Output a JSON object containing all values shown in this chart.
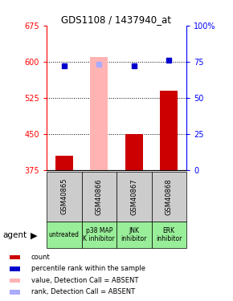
{
  "title": "GDS1108 / 1437940_at",
  "samples": [
    "GSM40865",
    "GSM40866",
    "GSM40867",
    "GSM40868"
  ],
  "agents": [
    "untreated",
    "p38 MAP\nK inhibitor",
    "JNK\ninhibitor",
    "ERK\ninhibitor"
  ],
  "ylim_left": [
    375,
    675
  ],
  "ylim_right": [
    0,
    100
  ],
  "yticks_left": [
    375,
    450,
    525,
    600,
    675
  ],
  "yticks_right": [
    0,
    25,
    50,
    75,
    100
  ],
  "bar_values": [
    405,
    610,
    450,
    540
  ],
  "bar_absent": [
    false,
    true,
    false,
    false
  ],
  "bar_color_present": "#cc0000",
  "bar_color_absent": "#ffb3b3",
  "blue_sq_values": [
    72,
    73,
    72,
    76
  ],
  "blue_sq_absent": [
    false,
    true,
    false,
    false
  ],
  "blue_sq_color_present": "#0000cc",
  "blue_sq_color_absent": "#aaaaff",
  "sample_bg_color": "#cccccc",
  "agent_bg_color": "#99ee99",
  "legend_items": [
    {
      "color": "#cc0000",
      "label": "count"
    },
    {
      "color": "#0000cc",
      "label": "percentile rank within the sample"
    },
    {
      "color": "#ffb3b3",
      "label": "value, Detection Call = ABSENT"
    },
    {
      "color": "#aaaaff",
      "label": "rank, Detection Call = ABSENT"
    }
  ]
}
